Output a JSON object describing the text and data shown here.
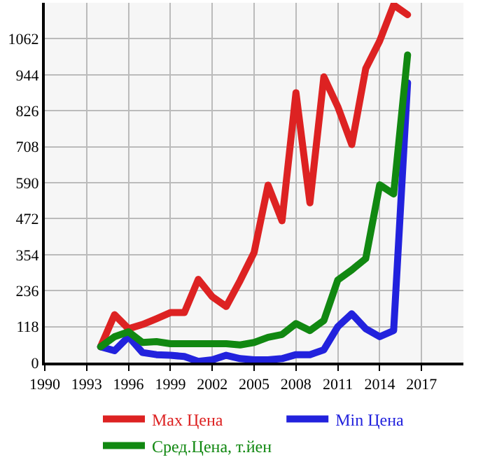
{
  "chart_data": {
    "type": "line",
    "x": [
      1994,
      1995,
      1996,
      1997,
      1998,
      1999,
      2000,
      2001,
      2002,
      2003,
      2004,
      2005,
      2006,
      2007,
      2008,
      2009,
      2010,
      2011,
      2012,
      2013,
      2014,
      2015,
      2016
    ],
    "series": [
      {
        "name": "Max Цена",
        "color": "#dd2222",
        "values": [
          52,
          157,
          111,
          125,
          144,
          164,
          164,
          273,
          216,
          184,
          269,
          361,
          582,
          465,
          885,
          524,
          937,
          839,
          715,
          964,
          1055,
          1173,
          1141
        ]
      },
      {
        "name": "Min Цена",
        "color": "#2222dd",
        "values": [
          52,
          39,
          85,
          33,
          26,
          24,
          20,
          4,
          9,
          24,
          13,
          9,
          9,
          13,
          26,
          26,
          42,
          118,
          160,
          111,
          85,
          105,
          918
        ]
      },
      {
        "name": "Сред.Цена, т.йен",
        "color": "#118811",
        "values": [
          52,
          85,
          101,
          66,
          69,
          62,
          62,
          62,
          62,
          62,
          58,
          66,
          83,
          92,
          128,
          105,
          138,
          271,
          304,
          341,
          583,
          553,
          1009
        ]
      }
    ],
    "xlim": [
      1990,
      2020
    ],
    "xticks": [
      1990,
      1993,
      1996,
      1999,
      2002,
      2005,
      2008,
      2011,
      2014,
      2017
    ],
    "ylim": [
      0,
      1180
    ],
    "yticks": [
      0,
      118,
      236,
      354,
      472,
      590,
      708,
      826,
      944,
      1062
    ],
    "grid": true,
    "legend": "bottom",
    "marker": "none",
    "line_style": "solid"
  }
}
